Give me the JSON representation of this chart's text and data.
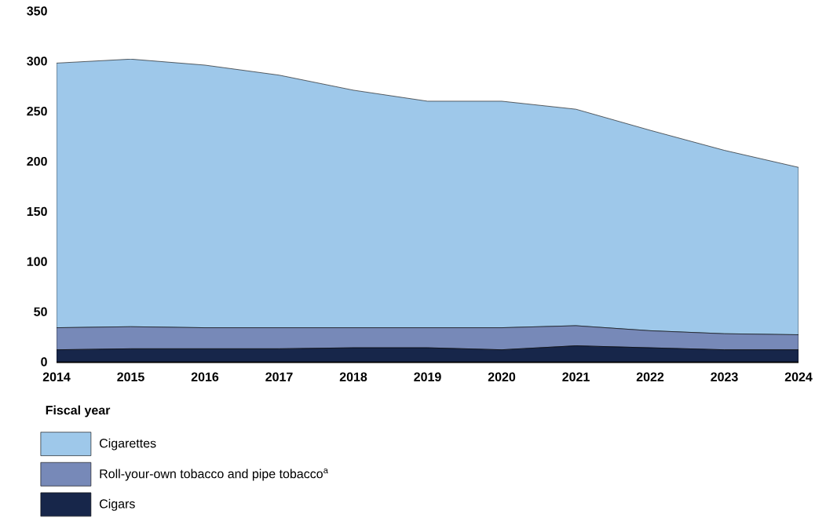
{
  "chart_data": {
    "type": "area",
    "stacked": true,
    "xlabel": "Fiscal year",
    "categories": [
      "2014",
      "2015",
      "2016",
      "2017",
      "2018",
      "2019",
      "2020",
      "2021",
      "2022",
      "2023",
      "2024"
    ],
    "series": [
      {
        "name": "Cigars",
        "color": "#17264a",
        "values": [
          12,
          13,
          13,
          13,
          14,
          14,
          12,
          16,
          14,
          12,
          12
        ]
      },
      {
        "name": "Roll-your-own tobacco and pipe tobacco$^{a}$",
        "color": "#7789b8",
        "values": [
          22,
          22,
          21,
          21,
          20,
          20,
          22,
          20,
          17,
          16,
          15
        ]
      },
      {
        "name": "Cigarettes",
        "color": "#9ec8ea",
        "values": [
          264,
          267,
          262,
          252,
          237,
          226,
          226,
          216,
          200,
          183,
          167
        ]
      }
    ],
    "ylim": [
      0,
      350
    ],
    "yticks": [
      0,
      50,
      100,
      150,
      200,
      250,
      300,
      350
    ],
    "grid": false,
    "legend": "bottom"
  }
}
